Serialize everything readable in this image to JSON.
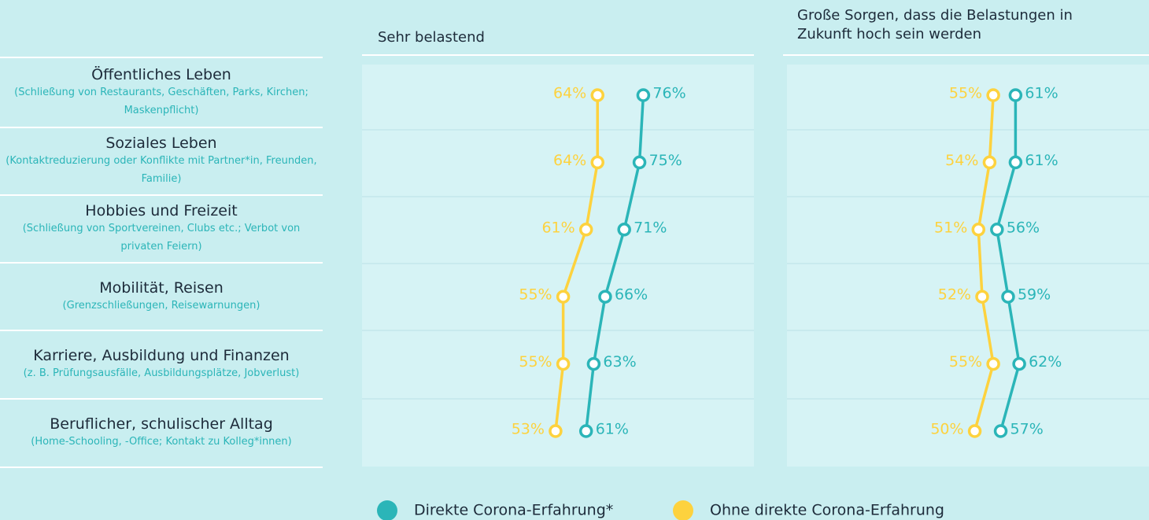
{
  "chart_data": [
    {
      "type": "dot-line",
      "title": "Sehr belastend",
      "categories": [
        "Öffentliches Leben",
        "Soziales Leben",
        "Hobbies und Freizeit",
        "Mobilität, Reisen",
        "Karriere, Ausbildung und Finanzen",
        "Beruflicher, schulischer Alltag"
      ],
      "category_notes": [
        "(Schließung von Restaurants, Geschäften, Parks, Kirchen; Maskenpflicht)",
        "(Kontaktreduzierung oder Konflikte mit Partner*in, Freunden, Familie)",
        "(Schließung von Sportvereinen, Clubs etc.; Verbot von privaten Feiern)",
        "(Grenzschließungen, Reisewarnungen)",
        "(z. B. Prüfungsausfälle, Ausbildungsplätze, Jobverlust)",
        "(Home-Schooling, -Office; Kontakt zu Kolleg*innen)"
      ],
      "xlim": [
        0,
        105
      ],
      "series": [
        {
          "name": "Direkte Corona-Erfahrung*",
          "color": "#2bb5b8",
          "values": [
            76,
            75,
            71,
            66,
            63,
            61
          ],
          "value_labels": [
            "76%",
            "75%",
            "71%",
            "66%",
            "63%",
            "61%"
          ]
        },
        {
          "name": "Ohne direkte Corona-Erfahrung",
          "color": "#fdd23e",
          "values": [
            64,
            64,
            61,
            55,
            55,
            53
          ],
          "value_labels": [
            "64%",
            "64%",
            "61%",
            "55%",
            "55%",
            "53%"
          ]
        }
      ]
    },
    {
      "type": "dot-line",
      "title": "Große Sorgen, dass die Belastungen in Zukunft hoch sein werden",
      "xlim": [
        0,
        97
      ],
      "series": [
        {
          "color": "#2bb5b8",
          "values": [
            61,
            61,
            56,
            59,
            62,
            57
          ],
          "value_labels": [
            "61%",
            "61%",
            "56%",
            "59%",
            "62%",
            "57%"
          ]
        },
        {
          "color": "#fdd23e",
          "values": [
            55,
            54,
            51,
            52,
            55,
            50
          ],
          "value_labels": [
            "55%",
            "54%",
            "51%",
            "52%",
            "55%",
            "50%"
          ]
        }
      ]
    }
  ]
}
